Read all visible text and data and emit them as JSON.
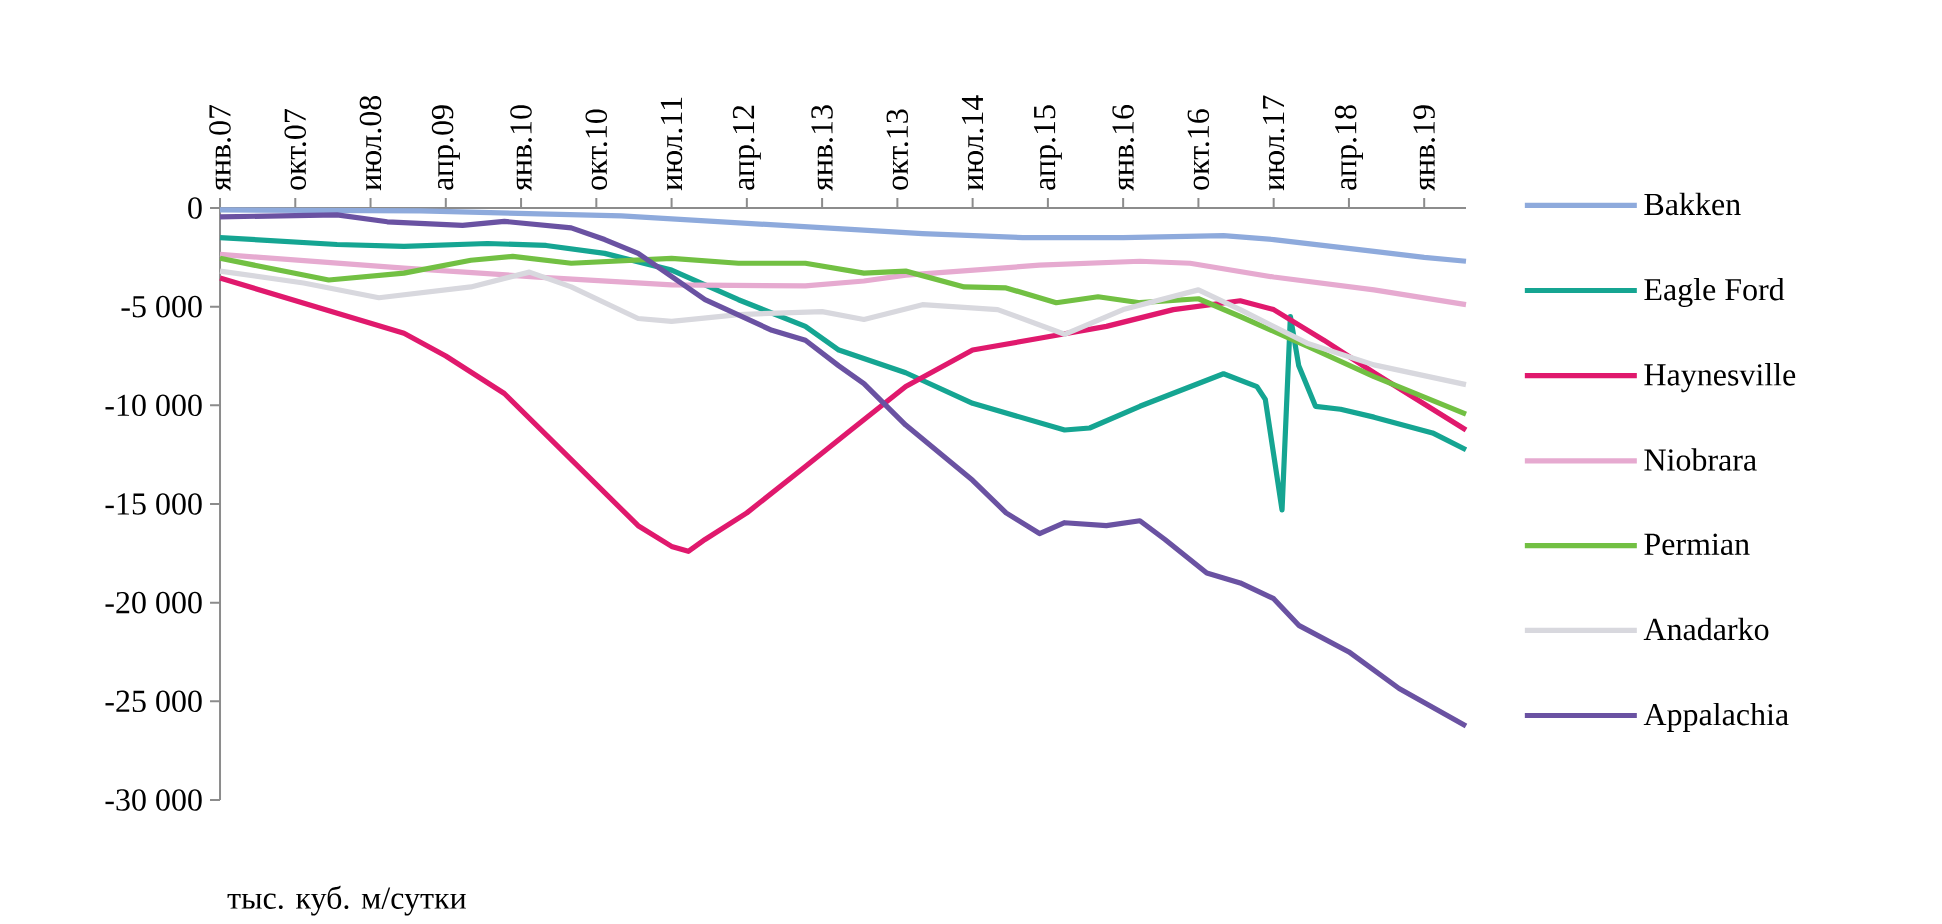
{
  "chart_data": {
    "type": "line",
    "annotations": [
      "тыс. куб. м/сутки"
    ],
    "xlim": [
      "2007-01",
      "2019-06"
    ],
    "xticks": [
      {
        "value": "2007-01",
        "label": "янв.07"
      },
      {
        "value": "2007-10",
        "label": "окт.07"
      },
      {
        "value": "2008-07",
        "label": "июл.08"
      },
      {
        "value": "2009-04",
        "label": "апр.09"
      },
      {
        "value": "2010-01",
        "label": "янв.10"
      },
      {
        "value": "2010-10",
        "label": "окт.10"
      },
      {
        "value": "2011-07",
        "label": "июл.11"
      },
      {
        "value": "2012-04",
        "label": "апр.12"
      },
      {
        "value": "2013-01",
        "label": "янв.13"
      },
      {
        "value": "2013-10",
        "label": "окт.13"
      },
      {
        "value": "2014-07",
        "label": "июл.14"
      },
      {
        "value": "2015-04",
        "label": "апр.15"
      },
      {
        "value": "2016-01",
        "label": "янв.16"
      },
      {
        "value": "2016-10",
        "label": "окт.16"
      },
      {
        "value": "2017-07",
        "label": "июл.17"
      },
      {
        "value": "2018-04",
        "label": "апр.18"
      },
      {
        "value": "2019-01",
        "label": "янв.19"
      }
    ],
    "ylim": [
      -30000,
      0
    ],
    "yticks": [
      {
        "value": 0,
        "label": "0"
      },
      {
        "value": -5000,
        "label": "-5 000"
      },
      {
        "value": -10000,
        "label": "-10 000"
      },
      {
        "value": -15000,
        "label": "-15 000"
      },
      {
        "value": -20000,
        "label": "-20 000"
      },
      {
        "value": -25000,
        "label": "-25 000"
      },
      {
        "value": -30000,
        "label": "-30 000"
      }
    ],
    "legend": "right",
    "series": [
      {
        "name": "Bakken",
        "color": "#8eaadc",
        "x": [
          "2007-01",
          "2009-01",
          "2011-01",
          "2012-01",
          "2013-01",
          "2014-01",
          "2015-01",
          "2016-01",
          "2017-01",
          "2017-07",
          "2018-01",
          "2018-07",
          "2019-01",
          "2019-06"
        ],
        "values": [
          -100,
          -150,
          -400,
          -700,
          -1000,
          -1300,
          -1500,
          -1500,
          -1400,
          -1600,
          -1900,
          -2200,
          -2500,
          -2700
        ]
      },
      {
        "name": "Eagle Ford",
        "color": "#15a592",
        "x": [
          "2007-01",
          "2008-03",
          "2008-11",
          "2009-09",
          "2010-04",
          "2010-11",
          "2011-07",
          "2012-03",
          "2012-11",
          "2013-03",
          "2013-11",
          "2014-07",
          "2015-06",
          "2015-09",
          "2016-03",
          "2017-01",
          "2017-05",
          "2017-06",
          "2017-08",
          "2017-09",
          "2017-10",
          "2017-12",
          "2018-03",
          "2018-07",
          "2019-02",
          "2019-06"
        ],
        "values": [
          -1500,
          -1850,
          -1950,
          -1800,
          -1900,
          -2300,
          -3150,
          -4650,
          -6000,
          -7200,
          -8350,
          -9900,
          -11250,
          -11150,
          -10050,
          -8400,
          -9050,
          -9700,
          -15300,
          -5500,
          -8000,
          -10050,
          -10200,
          -10600,
          -11400,
          -12250
        ]
      },
      {
        "name": "Haynesville",
        "color": "#e0196d",
        "x": [
          "2007-01",
          "2008-11",
          "2009-04",
          "2009-11",
          "2010-07",
          "2011-03",
          "2011-07",
          "2011-09",
          "2011-11",
          "2012-04",
          "2012-11",
          "2013-04",
          "2013-11",
          "2014-07",
          "2015-03",
          "2015-11",
          "2016-07",
          "2017-03",
          "2017-07",
          "2018-01",
          "2018-07",
          "2019-06"
        ],
        "values": [
          -3550,
          -6350,
          -7500,
          -9400,
          -12750,
          -16100,
          -17150,
          -17400,
          -16800,
          -15450,
          -13100,
          -11400,
          -9050,
          -7200,
          -6600,
          -6000,
          -5150,
          -4700,
          -5150,
          -6700,
          -8350,
          -11250
        ]
      },
      {
        "name": "Niobrara",
        "color": "#e6aad0",
        "x": [
          "2007-01",
          "2008-11",
          "2010-03",
          "2011-07",
          "2012-11",
          "2013-06",
          "2013-11",
          "2015-03",
          "2016-03",
          "2016-09",
          "2017-07",
          "2018-07",
          "2019-06"
        ],
        "values": [
          -2350,
          -3050,
          -3500,
          -3900,
          -3950,
          -3700,
          -3400,
          -2900,
          -2700,
          -2800,
          -3500,
          -4150,
          -4900
        ]
      },
      {
        "name": "Permian",
        "color": "#72c043",
        "x": [
          "2007-01",
          "2008-02",
          "2008-11",
          "2009-07",
          "2009-12",
          "2010-07",
          "2011-07",
          "2012-03",
          "2012-11",
          "2013-06",
          "2013-11",
          "2014-06",
          "2014-11",
          "2015-05",
          "2015-10",
          "2016-03",
          "2016-10",
          "2017-03",
          "2017-11",
          "2018-07",
          "2019-06"
        ],
        "values": [
          -2550,
          -3650,
          -3300,
          -2650,
          -2450,
          -2800,
          -2550,
          -2800,
          -2800,
          -3300,
          -3200,
          -4000,
          -4050,
          -4800,
          -4500,
          -4800,
          -4600,
          -5500,
          -7000,
          -8550,
          -10450
        ]
      },
      {
        "name": "Anadarko",
        "color": "#d8d8de",
        "x": [
          "2007-01",
          "2007-11",
          "2008-08",
          "2009-07",
          "2010-02",
          "2010-07",
          "2011-03",
          "2011-07",
          "2012-03",
          "2013-01",
          "2013-06",
          "2014-01",
          "2014-10",
          "2015-06",
          "2016-01",
          "2016-10",
          "2017-03",
          "2017-11",
          "2018-07",
          "2019-06"
        ],
        "values": [
          -3200,
          -3800,
          -4550,
          -4000,
          -3250,
          -4000,
          -5600,
          -5750,
          -5400,
          -5250,
          -5650,
          -4900,
          -5150,
          -6400,
          -5150,
          -4150,
          -5150,
          -6850,
          -7950,
          -8950
        ]
      },
      {
        "name": "Appalachia",
        "color": "#6a52a2",
        "x": [
          "2007-01",
          "2008-03",
          "2008-09",
          "2009-06",
          "2009-11",
          "2010-07",
          "2010-11",
          "2011-03",
          "2011-11",
          "2012-07",
          "2012-11",
          "2013-03",
          "2013-06",
          "2013-11",
          "2014-07",
          "2014-11",
          "2015-03",
          "2015-06",
          "2015-11",
          "2016-03",
          "2016-06",
          "2016-11",
          "2017-03",
          "2017-07",
          "2017-10",
          "2018-04",
          "2018-10",
          "2019-06"
        ],
        "values": [
          -450,
          -350,
          -700,
          -880,
          -680,
          -1010,
          -1600,
          -2300,
          -4650,
          -6200,
          -6700,
          -8000,
          -8900,
          -11000,
          -13800,
          -15450,
          -16500,
          -15950,
          -16100,
          -15850,
          -16800,
          -18500,
          -19000,
          -19800,
          -21150,
          -22500,
          -24350,
          -26250
        ]
      }
    ]
  }
}
